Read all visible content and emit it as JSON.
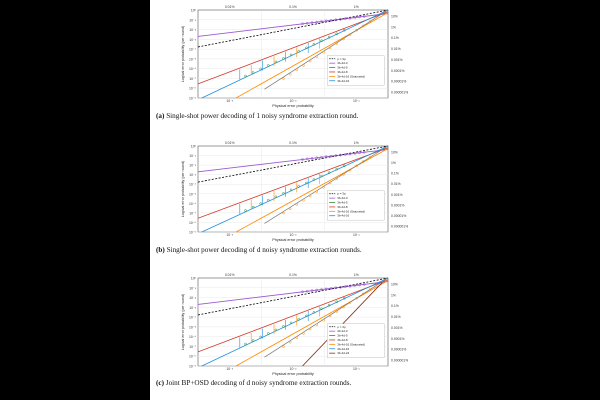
{
  "panels": [
    {
      "caption_label": "(a)",
      "caption_text": "Single-shot power decoding of 1 noisy syndrome extraction round.",
      "top_labels": [
        "0.01%",
        "0.1%",
        "1%"
      ],
      "right_labels": [
        "10%",
        "1%",
        "0.1%",
        "0.01%",
        "0.001%",
        "0.0001%",
        "0.00001%",
        "0.000001%"
      ],
      "x_ticks": [
        "10⁻³",
        "10⁻²",
        "10⁻¹"
      ],
      "y_ticks": [
        "10⁰",
        "10⁻¹",
        "10⁻²",
        "10⁻³",
        "10⁻⁴",
        "10⁻⁵",
        "10⁻⁶",
        "10⁻⁷",
        "10⁻⁸",
        "10⁻⁹"
      ],
      "xlabel": "Physical error probability",
      "ylabel": "Logical error probability (per round)",
      "legend": [
        "p = 3p",
        "3b-4d-3",
        "3b-4d-5",
        "3b-4d-8",
        "3b-4d-16 (Saturated)",
        "3b-4d-16"
      ],
      "colors": [
        "#000000",
        "#9b59d0",
        "#2e8b3f",
        "#d23c2a",
        "#ff8c00",
        "#1f8fe0"
      ]
    },
    {
      "caption_label": "(b)",
      "caption_text": "Single-shot power decoding of d noisy syndrome extraction rounds.",
      "top_labels": [
        "0.01%",
        "0.1%",
        "1%"
      ],
      "right_labels": [
        "10%",
        "1%",
        "0.1%",
        "0.01%",
        "0.001%",
        "0.0001%",
        "0.00001%",
        "0.000001%"
      ],
      "x_ticks": [
        "10⁻³",
        "10⁻²",
        "10⁻¹"
      ],
      "y_ticks": [
        "10⁰",
        "10⁻¹",
        "10⁻²",
        "10⁻³",
        "10⁻⁴",
        "10⁻⁵",
        "10⁻⁶",
        "10⁻⁷",
        "10⁻⁸",
        "10⁻⁹"
      ],
      "xlabel": "Physical error probability",
      "ylabel": "Logical error probability (per round)",
      "legend": [
        "p = 3p",
        "3b-4d-3",
        "3b-4d-5",
        "3b-4d-8",
        "3b-4d-16 (Saturated)",
        "3b-4d-16"
      ],
      "colors": [
        "#000000",
        "#9b59d0",
        "#2e8b3f",
        "#d23c2a",
        "#ff8c00",
        "#1f8fe0"
      ]
    },
    {
      "caption_label": "(c)",
      "caption_text": "Joint BP+OSD decoding of d noisy syndrome extraction rounds.",
      "top_labels": [
        "0.01%",
        "0.1%",
        "1%"
      ],
      "right_labels": [
        "10%",
        "1%",
        "0.1%",
        "0.01%",
        "0.001%",
        "0.0001%",
        "0.00001%",
        "0.000001%"
      ],
      "x_ticks": [
        "10⁻³",
        "10⁻²",
        "10⁻¹"
      ],
      "y_ticks": [
        "10⁰",
        "10⁻¹",
        "10⁻²",
        "10⁻³",
        "10⁻⁴",
        "10⁻⁵",
        "10⁻⁶",
        "10⁻⁷",
        "10⁻⁸",
        "10⁻⁹"
      ],
      "xlabel": "Physical error probability",
      "ylabel": "Logical error probability (per round)",
      "legend": [
        "p = 3p",
        "3b-4d-3",
        "3b-4d-5",
        "3b-4d-8",
        "3b-4d-16 (Saturated)",
        "3b-4d-16",
        "3b-4d-24"
      ],
      "colors": [
        "#000000",
        "#9b59d0",
        "#2e8b3f",
        "#d23c2a",
        "#ff8c00",
        "#1f8fe0",
        "#8b2d1a"
      ]
    }
  ]
}
